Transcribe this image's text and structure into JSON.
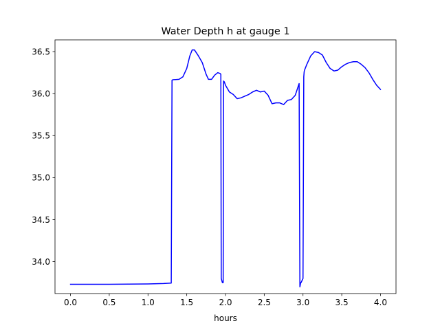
{
  "chart_data": {
    "type": "line",
    "title": "Water Depth h at gauge 1",
    "xlabel": "hours",
    "ylabel": "",
    "xlim": [
      -0.2,
      4.2
    ],
    "ylim": [
      33.62,
      36.64
    ],
    "x_ticks": [
      0.0,
      0.5,
      1.0,
      1.5,
      2.0,
      2.5,
      3.0,
      3.5,
      4.0
    ],
    "x_tick_labels": [
      "0.0",
      "0.5",
      "1.0",
      "1.5",
      "2.0",
      "2.5",
      "3.0",
      "3.5",
      "4.0"
    ],
    "y_ticks": [
      34.0,
      34.5,
      35.0,
      35.5,
      36.0,
      36.5
    ],
    "y_tick_labels": [
      "34.0",
      "34.5",
      "35.0",
      "35.5",
      "36.0",
      "36.5"
    ],
    "grid": false,
    "series": [
      {
        "color": "#0000ff",
        "x": [
          0.0,
          0.5,
          1.0,
          1.2,
          1.3,
          1.31,
          1.32,
          1.4,
          1.45,
          1.5,
          1.54,
          1.57,
          1.6,
          1.65,
          1.7,
          1.75,
          1.78,
          1.82,
          1.86,
          1.9,
          1.93,
          1.94,
          1.945,
          1.96,
          1.97,
          1.975,
          1.985,
          2.0,
          2.05,
          2.1,
          2.15,
          2.2,
          2.25,
          2.3,
          2.35,
          2.4,
          2.45,
          2.5,
          2.55,
          2.6,
          2.65,
          2.7,
          2.75,
          2.8,
          2.85,
          2.9,
          2.95,
          2.96,
          2.97,
          2.975,
          3.0,
          3.01,
          3.015,
          3.02,
          3.05,
          3.1,
          3.15,
          3.2,
          3.25,
          3.3,
          3.35,
          3.4,
          3.45,
          3.5,
          3.55,
          3.6,
          3.65,
          3.7,
          3.75,
          3.8,
          3.85,
          3.9,
          3.95,
          4.0
        ],
        "y": [
          33.73,
          33.73,
          33.735,
          33.74,
          33.745,
          36.16,
          36.165,
          36.17,
          36.2,
          36.3,
          36.45,
          36.52,
          36.52,
          36.45,
          36.37,
          36.23,
          36.17,
          36.17,
          36.22,
          36.25,
          36.24,
          36.23,
          33.8,
          33.75,
          33.75,
          36.15,
          36.14,
          36.1,
          36.02,
          35.99,
          35.94,
          35.95,
          35.97,
          35.99,
          36.02,
          36.04,
          36.02,
          36.03,
          35.98,
          35.88,
          35.89,
          35.89,
          35.87,
          35.92,
          35.93,
          35.98,
          36.12,
          33.7,
          33.75,
          33.75,
          33.8,
          36.2,
          36.26,
          36.28,
          36.35,
          36.45,
          36.5,
          36.49,
          36.46,
          36.37,
          36.3,
          36.27,
          36.28,
          36.32,
          36.35,
          36.37,
          36.38,
          36.38,
          36.35,
          36.31,
          36.25,
          36.17,
          36.1,
          36.05
        ]
      }
    ]
  }
}
